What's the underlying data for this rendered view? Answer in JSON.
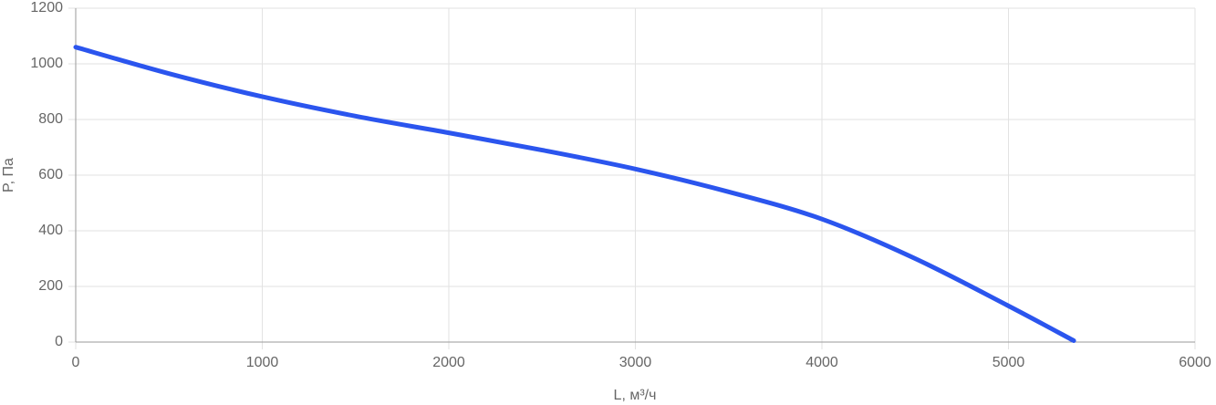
{
  "chart_data": {
    "type": "line",
    "x_label": "L, м³/ч",
    "y_label": "P, Па",
    "x": [
      0,
      500,
      1000,
      1500,
      2000,
      2500,
      3000,
      3500,
      4000,
      4500,
      5000,
      5350
    ],
    "series": [
      {
        "color": "#2b55ee",
        "values": [
          1060,
          965,
          882,
          812,
          752,
          690,
          622,
          540,
          442,
          300,
          130,
          5
        ]
      }
    ],
    "xlim": [
      0,
      6000
    ],
    "xticks": [
      0,
      1000,
      2000,
      3000,
      4000,
      5000,
      6000
    ],
    "ylim": [
      0,
      1200
    ],
    "yticks": [
      0,
      200,
      400,
      600,
      800,
      1000,
      1200
    ],
    "grid": true
  }
}
